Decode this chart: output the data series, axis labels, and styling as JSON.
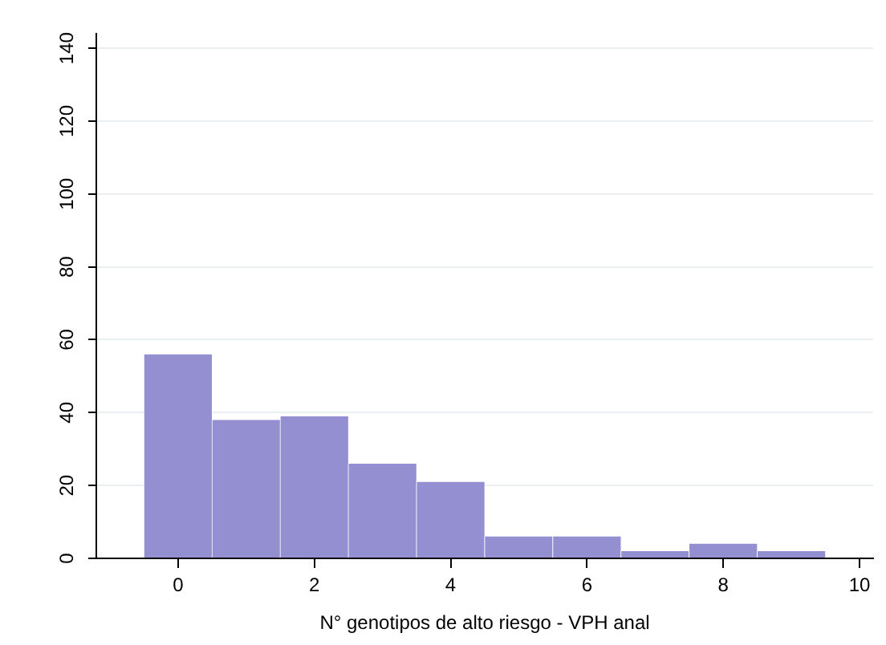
{
  "chart_data": {
    "type": "histogram",
    "xlabel": "N° genotipos de alto riesgo - VPH anal",
    "bins": [
      -0.5,
      0.5,
      1.5,
      2.5,
      3.5,
      4.5,
      5.5,
      6.5,
      7.5,
      8.5,
      9.5
    ],
    "values": [
      56,
      38,
      39,
      26,
      21,
      6,
      6,
      2,
      4,
      2
    ],
    "color": "#938fd0",
    "xlim": [
      -1.2,
      10.2
    ],
    "xticks": [
      0,
      2,
      4,
      6,
      8,
      10
    ],
    "ylim": [
      0,
      144
    ],
    "yticks": [
      0,
      20,
      40,
      60,
      80,
      100,
      120,
      140
    ],
    "grid": "y"
  }
}
